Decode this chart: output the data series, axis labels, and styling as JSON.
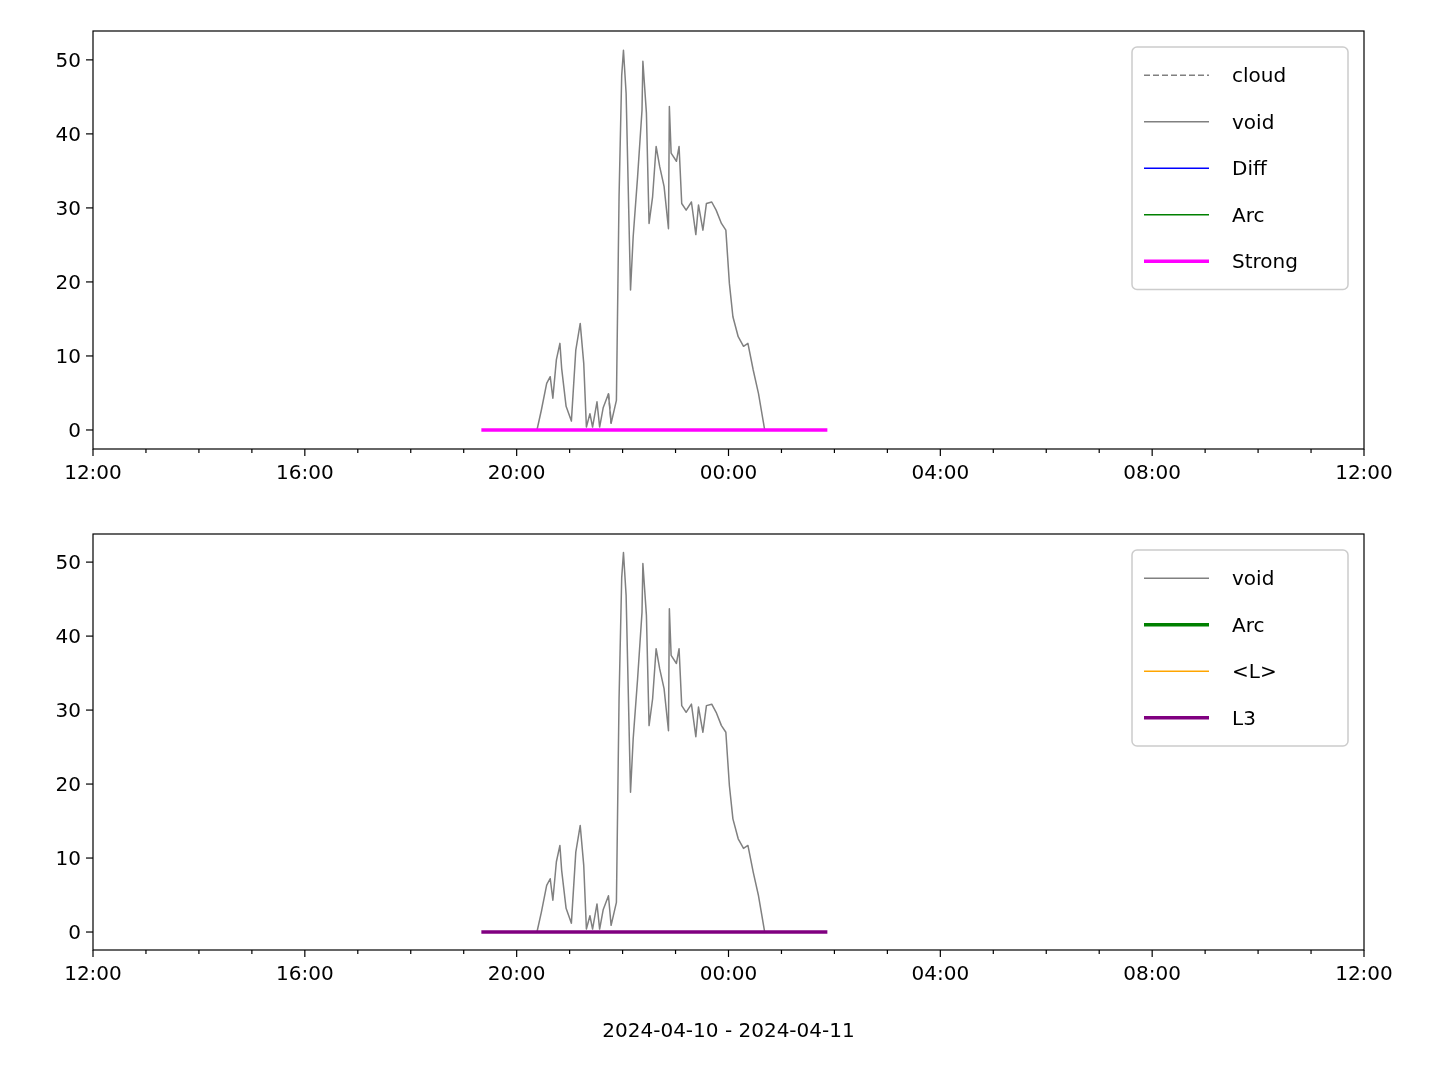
{
  "chart_data": [
    {
      "type": "line",
      "xlim": [
        "2024-04-10T12:00",
        "2024-04-11T12:00"
      ],
      "ylim": [
        -2.57,
        53.9
      ],
      "xticks": [
        {
          "value": "2024-04-10T12:00",
          "label": "12:00"
        },
        {
          "value": "2024-04-10T13:00",
          "label": null
        },
        {
          "value": "2024-04-10T14:00",
          "label": null
        },
        {
          "value": "2024-04-10T15:00",
          "label": null
        },
        {
          "value": "2024-04-10T16:00",
          "label": "16:00"
        },
        {
          "value": "2024-04-10T17:00",
          "label": null
        },
        {
          "value": "2024-04-10T18:00",
          "label": null
        },
        {
          "value": "2024-04-10T19:00",
          "label": null
        },
        {
          "value": "2024-04-10T20:00",
          "label": "20:00"
        },
        {
          "value": "2024-04-10T21:00",
          "label": null
        },
        {
          "value": "2024-04-10T22:00",
          "label": null
        },
        {
          "value": "2024-04-10T23:00",
          "label": null
        },
        {
          "value": "2024-04-11T00:00",
          "label": "00:00"
        },
        {
          "value": "2024-04-11T01:00",
          "label": null
        },
        {
          "value": "2024-04-11T02:00",
          "label": null
        },
        {
          "value": "2024-04-11T03:00",
          "label": null
        },
        {
          "value": "2024-04-11T04:00",
          "label": "04:00"
        },
        {
          "value": "2024-04-11T05:00",
          "label": null
        },
        {
          "value": "2024-04-11T06:00",
          "label": null
        },
        {
          "value": "2024-04-11T07:00",
          "label": null
        },
        {
          "value": "2024-04-11T08:00",
          "label": "08:00"
        },
        {
          "value": "2024-04-11T09:00",
          "label": null
        },
        {
          "value": "2024-04-11T10:00",
          "label": null
        },
        {
          "value": "2024-04-11T11:00",
          "label": null
        },
        {
          "value": "2024-04-11T12:00",
          "label": "12:00"
        }
      ],
      "yticks": [
        0,
        10,
        20,
        30,
        40,
        50
      ],
      "legend": "top right",
      "series": [
        {
          "name": "cloud",
          "color": "#808080",
          "line_style": "dashed",
          "x": [
            "2024-04-10T21:44",
            "2024-04-10T21:46",
            "2024-04-10T21:47"
          ],
          "values": [
            4.9,
            2.5,
            0.9
          ]
        },
        {
          "name": "void",
          "color": "#808080",
          "x": [
            "2024-04-10T20:23",
            "2024-04-10T20:28",
            "2024-04-10T20:34",
            "2024-04-10T20:38",
            "2024-04-10T20:41",
            "2024-04-10T20:45",
            "2024-04-10T20:49",
            "2024-04-10T20:51",
            "2024-04-10T20:56",
            "2024-04-10T21:02",
            "2024-04-10T21:07",
            "2024-04-10T21:12",
            "2024-04-10T21:16",
            "2024-04-10T21:19",
            "2024-04-10T21:23",
            "2024-04-10T21:26",
            "2024-04-10T21:31",
            "2024-04-10T21:34",
            "2024-04-10T21:38",
            "2024-04-10T21:44",
            "2024-04-10T21:47",
            "2024-04-10T21:53",
            "2024-04-10T21:56",
            "2024-04-10T21:59",
            "2024-04-10T22:01",
            "2024-04-10T22:04",
            "2024-04-10T22:09",
            "2024-04-10T22:12",
            "2024-04-10T22:17",
            "2024-04-10T22:22",
            "2024-04-10T22:23",
            "2024-04-10T22:27",
            "2024-04-10T22:30",
            "2024-04-10T22:34",
            "2024-04-10T22:38",
            "2024-04-10T22:42",
            "2024-04-10T22:47",
            "2024-04-10T22:52",
            "2024-04-10T22:53",
            "2024-04-10T22:55",
            "2024-04-10T23:01",
            "2024-04-10T23:04",
            "2024-04-10T23:07",
            "2024-04-10T23:12",
            "2024-04-10T23:18",
            "2024-04-10T23:23",
            "2024-04-10T23:26",
            "2024-04-10T23:31",
            "2024-04-10T23:35",
            "2024-04-10T23:41",
            "2024-04-10T23:46",
            "2024-04-10T23:52",
            "2024-04-10T23:57",
            "2024-04-11T00:01",
            "2024-04-11T00:05",
            "2024-04-11T00:11",
            "2024-04-11T00:17",
            "2024-04-11T00:22",
            "2024-04-11T00:28",
            "2024-04-11T00:34",
            "2024-04-11T00:41"
          ],
          "values": [
            0,
            2.7,
            6.3,
            7.2,
            4.3,
            9.5,
            11.7,
            8.3,
            3.2,
            1.2,
            10.8,
            14.4,
            9,
            0.4,
            2.2,
            0.4,
            3.8,
            0.4,
            3,
            4.9,
            0.9,
            4,
            31.5,
            47.9,
            51.3,
            45.5,
            18.9,
            26.1,
            34.2,
            43.2,
            49.8,
            42.8,
            27.9,
            31.5,
            38.3,
            35.6,
            32.9,
            27.2,
            43.7,
            37.4,
            36.3,
            38.3,
            30.6,
            29.7,
            30.8,
            26.4,
            30.4,
            27,
            30.6,
            30.8,
            29.7,
            27.9,
            27,
            19.8,
            15.3,
            12.6,
            11.3,
            11.7,
            8.1,
            4.9,
            0
          ]
        },
        {
          "name": "Diff",
          "color": "#0000ff"
        },
        {
          "name": "Arc",
          "color": "#008000"
        },
        {
          "name": "Strong",
          "color": "#ff00ff",
          "x": [
            "2024-04-10T19:20",
            "2024-04-11T01:52"
          ],
          "values": [
            0,
            0
          ]
        }
      ]
    },
    {
      "type": "line",
      "xlim": [
        "2024-04-10T12:00",
        "2024-04-11T12:00"
      ],
      "ylim": [
        -2.43,
        53.8
      ],
      "xlabel": "2024-04-10 - 2024-04-11",
      "xticks": [
        {
          "value": "2024-04-10T12:00",
          "label": "12:00"
        },
        {
          "value": "2024-04-10T13:00",
          "label": null
        },
        {
          "value": "2024-04-10T14:00",
          "label": null
        },
        {
          "value": "2024-04-10T15:00",
          "label": null
        },
        {
          "value": "2024-04-10T16:00",
          "label": "16:00"
        },
        {
          "value": "2024-04-10T17:00",
          "label": null
        },
        {
          "value": "2024-04-10T18:00",
          "label": null
        },
        {
          "value": "2024-04-10T19:00",
          "label": null
        },
        {
          "value": "2024-04-10T20:00",
          "label": "20:00"
        },
        {
          "value": "2024-04-10T21:00",
          "label": null
        },
        {
          "value": "2024-04-10T22:00",
          "label": null
        },
        {
          "value": "2024-04-10T23:00",
          "label": null
        },
        {
          "value": "2024-04-11T00:00",
          "label": "00:00"
        },
        {
          "value": "2024-04-11T01:00",
          "label": null
        },
        {
          "value": "2024-04-11T02:00",
          "label": null
        },
        {
          "value": "2024-04-11T03:00",
          "label": null
        },
        {
          "value": "2024-04-11T04:00",
          "label": "04:00"
        },
        {
          "value": "2024-04-11T05:00",
          "label": null
        },
        {
          "value": "2024-04-11T06:00",
          "label": null
        },
        {
          "value": "2024-04-11T07:00",
          "label": null
        },
        {
          "value": "2024-04-11T08:00",
          "label": "08:00"
        },
        {
          "value": "2024-04-11T09:00",
          "label": null
        },
        {
          "value": "2024-04-11T10:00",
          "label": null
        },
        {
          "value": "2024-04-11T11:00",
          "label": null
        },
        {
          "value": "2024-04-11T12:00",
          "label": "12:00"
        }
      ],
      "yticks": [
        0,
        10,
        20,
        30,
        40,
        50
      ],
      "legend": "top right",
      "series": [
        {
          "name": "void",
          "color": "#808080",
          "x": [
            "2024-04-10T20:23",
            "2024-04-10T20:28",
            "2024-04-10T20:34",
            "2024-04-10T20:38",
            "2024-04-10T20:41",
            "2024-04-10T20:45",
            "2024-04-10T20:49",
            "2024-04-10T20:51",
            "2024-04-10T20:56",
            "2024-04-10T21:02",
            "2024-04-10T21:07",
            "2024-04-10T21:12",
            "2024-04-10T21:16",
            "2024-04-10T21:19",
            "2024-04-10T21:23",
            "2024-04-10T21:26",
            "2024-04-10T21:31",
            "2024-04-10T21:34",
            "2024-04-10T21:38",
            "2024-04-10T21:44",
            "2024-04-10T21:47",
            "2024-04-10T21:53",
            "2024-04-10T21:56",
            "2024-04-10T21:59",
            "2024-04-10T22:01",
            "2024-04-10T22:04",
            "2024-04-10T22:09",
            "2024-04-10T22:12",
            "2024-04-10T22:17",
            "2024-04-10T22:22",
            "2024-04-10T22:23",
            "2024-04-10T22:27",
            "2024-04-10T22:30",
            "2024-04-10T22:34",
            "2024-04-10T22:38",
            "2024-04-10T22:42",
            "2024-04-10T22:47",
            "2024-04-10T22:52",
            "2024-04-10T22:53",
            "2024-04-10T22:55",
            "2024-04-10T23:01",
            "2024-04-10T23:04",
            "2024-04-10T23:07",
            "2024-04-10T23:12",
            "2024-04-10T23:18",
            "2024-04-10T23:23",
            "2024-04-10T23:26",
            "2024-04-10T23:31",
            "2024-04-10T23:35",
            "2024-04-10T23:41",
            "2024-04-10T23:46",
            "2024-04-10T23:52",
            "2024-04-10T23:57",
            "2024-04-11T00:01",
            "2024-04-11T00:05",
            "2024-04-11T00:11",
            "2024-04-11T00:17",
            "2024-04-11T00:22",
            "2024-04-11T00:28",
            "2024-04-11T00:34",
            "2024-04-11T00:41"
          ],
          "values": [
            0,
            2.7,
            6.3,
            7.2,
            4.3,
            9.5,
            11.7,
            8.3,
            3.2,
            1.2,
            10.8,
            14.4,
            9,
            0.4,
            2.2,
            0.4,
            3.8,
            0.4,
            3,
            4.9,
            0.9,
            4,
            31.5,
            47.9,
            51.3,
            45.5,
            18.9,
            26.1,
            34.2,
            43.2,
            49.8,
            42.8,
            27.9,
            31.5,
            38.3,
            35.6,
            32.9,
            27.2,
            43.7,
            37.4,
            36.3,
            38.3,
            30.6,
            29.7,
            30.8,
            26.4,
            30.4,
            27,
            30.6,
            30.8,
            29.7,
            27.9,
            27,
            19.8,
            15.3,
            12.6,
            11.3,
            11.7,
            8.1,
            4.9,
            0
          ]
        },
        {
          "name": "Arc",
          "color": "#008000"
        },
        {
          "name": "<L>",
          "color": "#ffa500"
        },
        {
          "name": "L3",
          "color": "#800080",
          "x": [
            "2024-04-10T19:20",
            "2024-04-11T01:52"
          ],
          "values": [
            0,
            0
          ]
        }
      ]
    }
  ]
}
